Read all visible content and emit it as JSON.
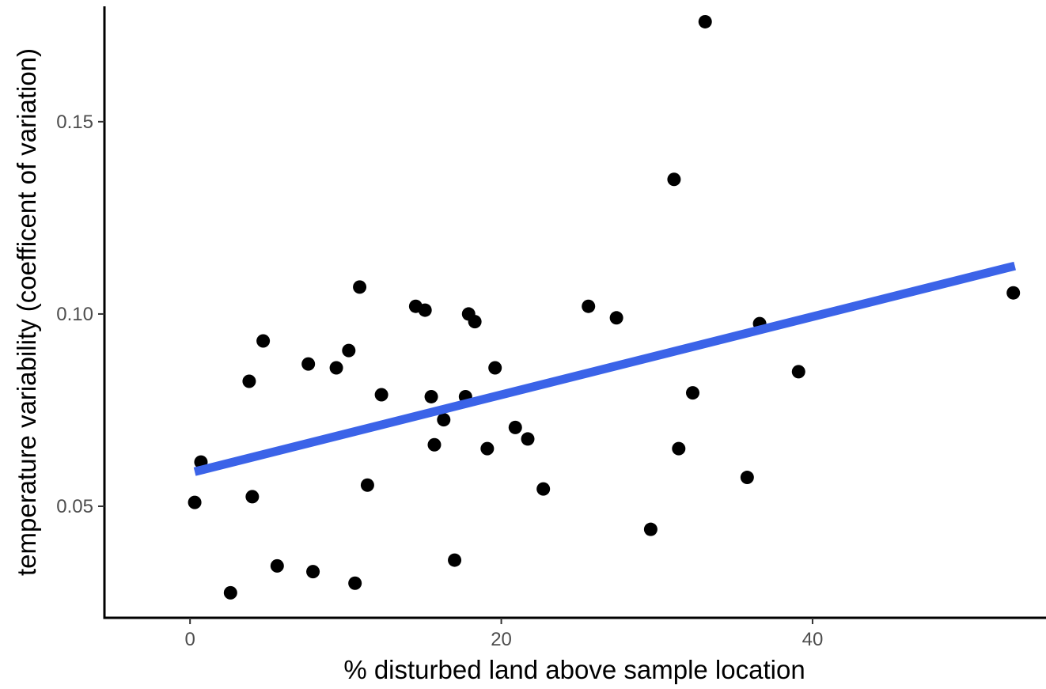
{
  "chart_data": {
    "type": "scatter",
    "title": "",
    "xlabel": "% disturbed land above sample location",
    "ylabel": "temperature variability (coefficent of variation)",
    "xlim": [
      -5.5,
      55
    ],
    "ylim": [
      0.021,
      0.18
    ],
    "x_ticks": [
      0,
      20,
      40
    ],
    "x_tick_labels": [
      "0",
      "20",
      "40"
    ],
    "y_ticks": [
      0.05,
      0.1,
      0.15
    ],
    "y_tick_labels": [
      "0.05",
      "0.10",
      "0.15"
    ],
    "grid": false,
    "legend": "none",
    "point_color": "#000000",
    "fit_line_color": "#3b63e8",
    "fit_line": {
      "x": [
        0.3,
        53.0
      ],
      "y": [
        0.059,
        0.1125
      ]
    },
    "series": [
      {
        "points": [
          {
            "x": 0.3,
            "y": 0.051
          },
          {
            "x": 0.7,
            "y": 0.0615
          },
          {
            "x": 2.6,
            "y": 0.0275
          },
          {
            "x": 3.8,
            "y": 0.0825
          },
          {
            "x": 4.0,
            "y": 0.0525
          },
          {
            "x": 4.7,
            "y": 0.093
          },
          {
            "x": 5.6,
            "y": 0.0345
          },
          {
            "x": 7.6,
            "y": 0.087
          },
          {
            "x": 7.9,
            "y": 0.033
          },
          {
            "x": 9.4,
            "y": 0.086
          },
          {
            "x": 10.2,
            "y": 0.0905
          },
          {
            "x": 10.6,
            "y": 0.03
          },
          {
            "x": 10.9,
            "y": 0.107
          },
          {
            "x": 11.4,
            "y": 0.0555
          },
          {
            "x": 12.3,
            "y": 0.079
          },
          {
            "x": 14.5,
            "y": 0.102
          },
          {
            "x": 15.1,
            "y": 0.101
          },
          {
            "x": 15.5,
            "y": 0.0785
          },
          {
            "x": 15.7,
            "y": 0.066
          },
          {
            "x": 16.3,
            "y": 0.0725
          },
          {
            "x": 17.0,
            "y": 0.036
          },
          {
            "x": 17.7,
            "y": 0.0785
          },
          {
            "x": 17.9,
            "y": 0.1
          },
          {
            "x": 18.3,
            "y": 0.098
          },
          {
            "x": 19.1,
            "y": 0.065
          },
          {
            "x": 19.6,
            "y": 0.086
          },
          {
            "x": 20.9,
            "y": 0.0705
          },
          {
            "x": 21.7,
            "y": 0.0675
          },
          {
            "x": 22.7,
            "y": 0.0545
          },
          {
            "x": 25.6,
            "y": 0.102
          },
          {
            "x": 27.4,
            "y": 0.099
          },
          {
            "x": 29.6,
            "y": 0.044
          },
          {
            "x": 31.1,
            "y": 0.135
          },
          {
            "x": 31.4,
            "y": 0.065
          },
          {
            "x": 32.3,
            "y": 0.0795
          },
          {
            "x": 33.1,
            "y": 0.176
          },
          {
            "x": 35.8,
            "y": 0.0575
          },
          {
            "x": 36.6,
            "y": 0.0975
          },
          {
            "x": 39.1,
            "y": 0.085
          },
          {
            "x": 52.9,
            "y": 0.1055
          }
        ]
      }
    ]
  }
}
